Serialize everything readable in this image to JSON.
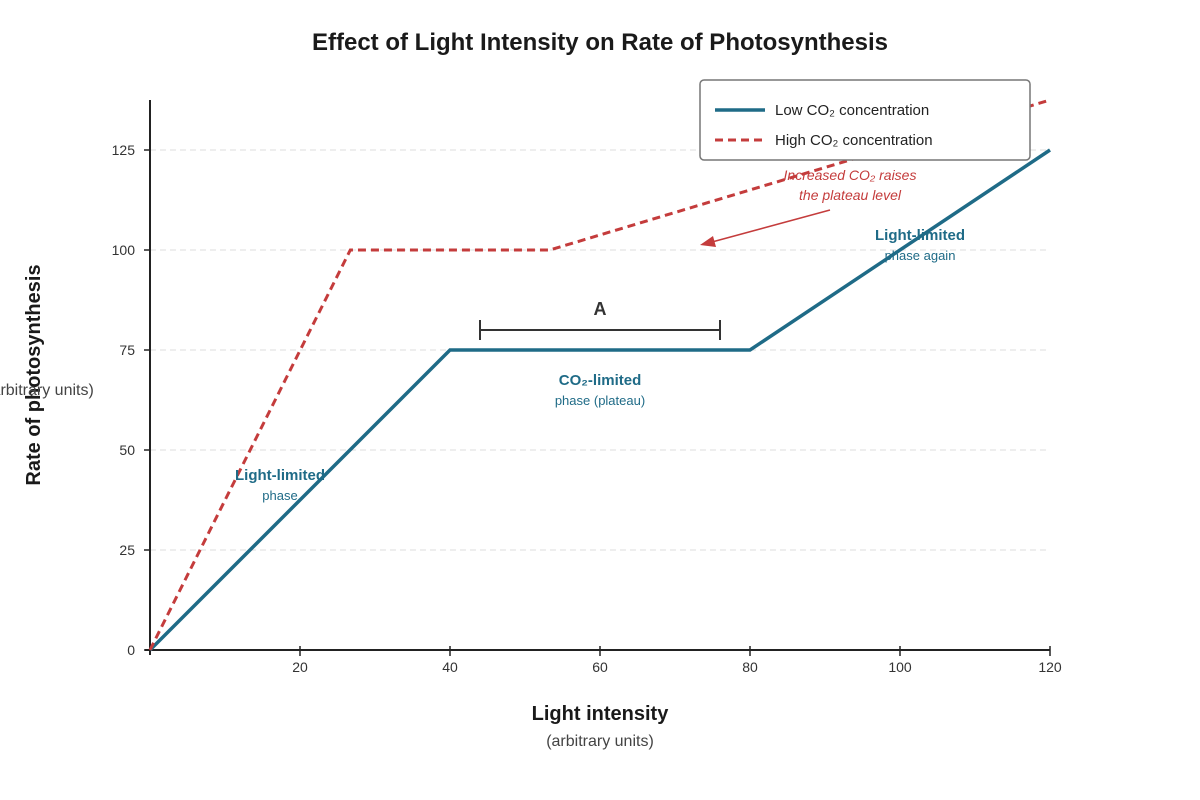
{
  "colors": {
    "low_co2": "#1f6b87",
    "high_co2": "#c43c3c",
    "axis": "#222222",
    "grid": "#dddddd"
  },
  "chart_data": {
    "type": "line",
    "title": "Effect of Light Intensity on Rate of Photosynthesis",
    "xlabel": "Light intensity",
    "xlabel_sub": "(arbitrary units)",
    "ylabel": "Rate of photosynthesis",
    "ylabel_sub": "(arbitrary units)",
    "xlim": [
      0,
      120
    ],
    "ylim": [
      0,
      138
    ],
    "x_ticks": [
      20,
      40,
      60,
      80,
      100,
      120
    ],
    "y_ticks": [
      0,
      25,
      50,
      75,
      100,
      125
    ],
    "grid": "horizontal dashed",
    "legend_position": "top-right",
    "series": [
      {
        "name": "Low CO₂ concentration",
        "style": "solid",
        "x": [
          0,
          40,
          80,
          120
        ],
        "y": [
          0,
          75,
          75,
          125
        ]
      },
      {
        "name": "High CO₂ concentration",
        "style": "dashed",
        "x": [
          0,
          26.7,
          53.3,
          120
        ],
        "y": [
          0,
          100,
          100,
          137.5
        ]
      }
    ],
    "annotations": {
      "light_limited_1": {
        "title": "Light-limited",
        "sub": "phase"
      },
      "co2_limited": {
        "title": "CO₂-limited",
        "sub": "phase (plateau)"
      },
      "light_limited_2": {
        "title": "Light-limited",
        "sub": "phase again"
      },
      "co2_effect": {
        "line1": "Increased CO₂ raises",
        "line2": "the plateau level"
      },
      "bracket": {
        "label": "A",
        "x_start": 44,
        "x_end": 76,
        "y": 80
      }
    }
  }
}
